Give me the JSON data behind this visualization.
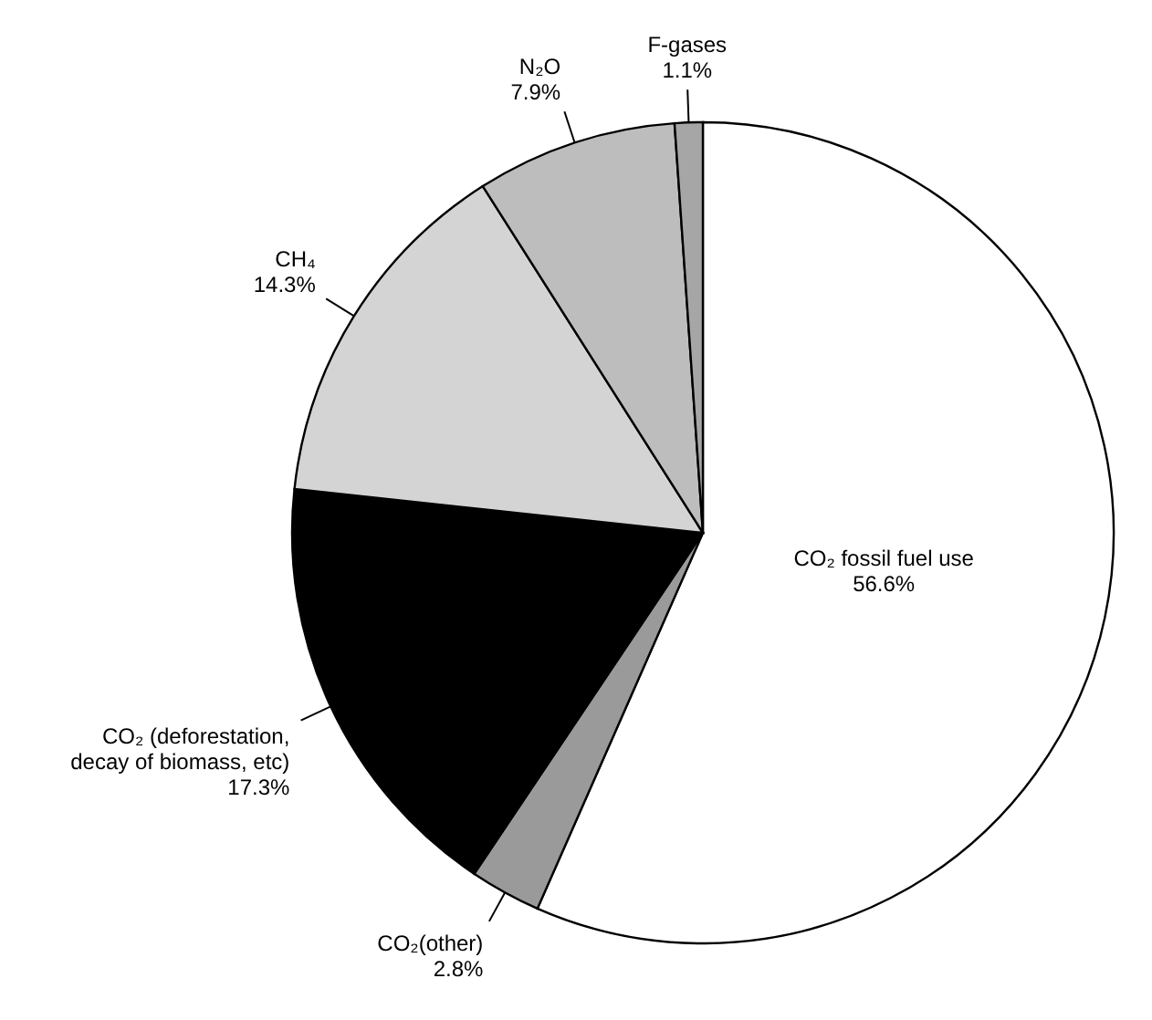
{
  "chart_data": {
    "type": "pie",
    "categories": [
      "CO₂ fossil fuel use",
      "CO₂(other)",
      "CO₂ (deforestation, decay of biomass, etc)",
      "CH₄",
      "N₂O",
      "F-gases"
    ],
    "values": [
      56.6,
      2.8,
      17.3,
      14.3,
      7.9,
      1.1
    ],
    "value_labels": [
      "56.6%",
      "2.8%",
      "17.3%",
      "14.3%",
      "7.9%",
      "1.1%"
    ],
    "colors": [
      "#ffffff",
      "#9a9a9a",
      "#000000",
      "#d4d4d4",
      "#bdbdbd",
      "#a6a6a6"
    ]
  }
}
